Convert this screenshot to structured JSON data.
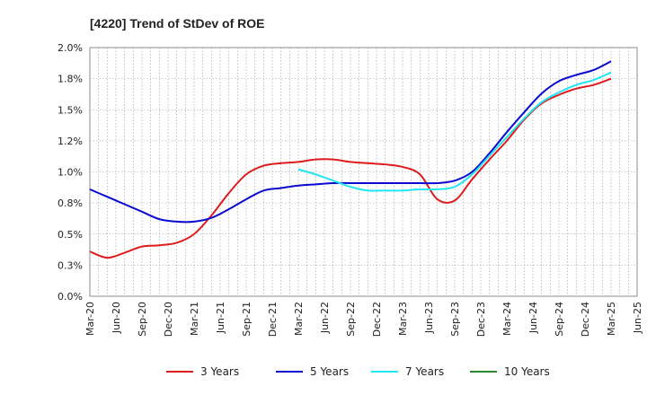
{
  "chart_data": {
    "type": "line",
    "title": "[4220]  Trend of StDev of ROE",
    "xlabel": "",
    "ylabel": "",
    "ylim": [
      0,
      2.0
    ],
    "yticks": [
      "0.0%",
      "0.3%",
      "0.5%",
      "0.8%",
      "1.0%",
      "1.2%",
      "1.5%",
      "1.8%",
      "2.0%"
    ],
    "ytick_values": [
      0,
      0.25,
      0.5,
      0.75,
      1.0,
      1.25,
      1.5,
      1.75,
      2.0
    ],
    "xticks": [
      "Mar-20",
      "Jun-20",
      "Sep-20",
      "Dec-20",
      "Mar-21",
      "Jun-21",
      "Sep-21",
      "Dec-21",
      "Mar-22",
      "Jun-22",
      "Sep-22",
      "Dec-22",
      "Mar-23",
      "Jun-23",
      "Sep-23",
      "Dec-23",
      "Mar-24",
      "Jun-24",
      "Sep-24",
      "Dec-24",
      "Mar-25",
      "Jun-25"
    ],
    "grid": true,
    "legend_position": "bottom",
    "series": [
      {
        "name": "3 Years",
        "color": "#dd1c1c",
        "values": [
          [
            0,
            0.36
          ],
          [
            1,
            0.31
          ],
          [
            2,
            0.35
          ],
          [
            3,
            0.4
          ],
          [
            4,
            0.41
          ],
          [
            5,
            0.43
          ],
          [
            6,
            0.5
          ],
          [
            7,
            0.65
          ],
          [
            8,
            0.83
          ],
          [
            9,
            0.98
          ],
          [
            10,
            1.05
          ],
          [
            11,
            1.07
          ],
          [
            12,
            1.08
          ],
          [
            13,
            1.1
          ],
          [
            14,
            1.1
          ],
          [
            15,
            1.08
          ],
          [
            16,
            1.07
          ],
          [
            17,
            1.06
          ],
          [
            18,
            1.04
          ],
          [
            19,
            0.98
          ],
          [
            20,
            0.78
          ],
          [
            21,
            0.77
          ],
          [
            22,
            0.94
          ],
          [
            23,
            1.1
          ],
          [
            24,
            1.25
          ],
          [
            25,
            1.42
          ],
          [
            26,
            1.55
          ],
          [
            27,
            1.62
          ],
          [
            28,
            1.67
          ],
          [
            29,
            1.7
          ],
          [
            30,
            1.75
          ]
        ]
      },
      {
        "name": "5 Years",
        "color": "#0a0ad0",
        "values": [
          [
            0,
            0.86
          ],
          [
            1,
            0.8
          ],
          [
            2,
            0.74
          ],
          [
            3,
            0.68
          ],
          [
            4,
            0.62
          ],
          [
            5,
            0.6
          ],
          [
            6,
            0.6
          ],
          [
            7,
            0.63
          ],
          [
            8,
            0.7
          ],
          [
            9,
            0.78
          ],
          [
            10,
            0.85
          ],
          [
            11,
            0.87
          ],
          [
            12,
            0.89
          ],
          [
            13,
            0.9
          ],
          [
            14,
            0.91
          ],
          [
            15,
            0.91
          ],
          [
            16,
            0.91
          ],
          [
            17,
            0.91
          ],
          [
            18,
            0.91
          ],
          [
            19,
            0.91
          ],
          [
            20,
            0.91
          ],
          [
            21,
            0.93
          ],
          [
            22,
            1.0
          ],
          [
            23,
            1.15
          ],
          [
            24,
            1.32
          ],
          [
            25,
            1.48
          ],
          [
            26,
            1.63
          ],
          [
            27,
            1.73
          ],
          [
            28,
            1.78
          ],
          [
            29,
            1.82
          ],
          [
            30,
            1.89
          ]
        ]
      },
      {
        "name": "7 Years",
        "color": "#21e6f0",
        "values": [
          [
            12,
            1.02
          ],
          [
            13,
            0.98
          ],
          [
            14,
            0.93
          ],
          [
            15,
            0.88
          ],
          [
            16,
            0.85
          ],
          [
            17,
            0.85
          ],
          [
            18,
            0.85
          ],
          [
            19,
            0.86
          ],
          [
            20,
            0.86
          ],
          [
            21,
            0.88
          ],
          [
            22,
            0.98
          ],
          [
            23,
            1.13
          ],
          [
            24,
            1.28
          ],
          [
            25,
            1.43
          ],
          [
            26,
            1.56
          ],
          [
            27,
            1.64
          ],
          [
            28,
            1.7
          ],
          [
            29,
            1.74
          ],
          [
            30,
            1.8
          ]
        ]
      },
      {
        "name": "10 Years",
        "color": "#2a8a2a",
        "values": []
      }
    ]
  }
}
